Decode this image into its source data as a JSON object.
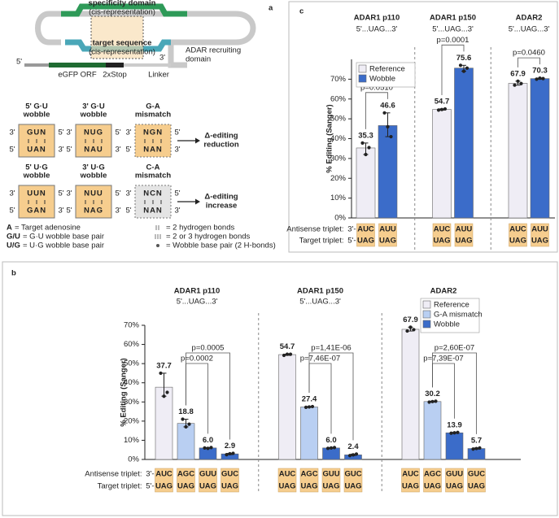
{
  "diagram": {
    "panel_label": "a",
    "construct": {
      "specificity": "specificity domain",
      "specificity_note": "(cis-representation)",
      "target": "target sequence",
      "target_note": "(cis-representation)",
      "three_prime": "3'",
      "five_prime": "5'",
      "recruiting": [
        "ADAR recruiting",
        "domain"
      ],
      "orf": "eGFP ORF",
      "stop": "2xStop",
      "linker": "Linker"
    },
    "pairs": [
      {
        "title": [
          "5' G·U",
          "wobble"
        ],
        "top": "GUN",
        "bottom": "UAN"
      },
      {
        "title": [
          "3' G·U",
          "wobble"
        ],
        "top": "NUG",
        "bottom": "NAU"
      },
      {
        "title": [
          "G-A",
          "mismatch"
        ],
        "top": "NGN",
        "bottom": "NAN"
      },
      {
        "title": [
          "5' U·G",
          "wobble"
        ],
        "top": "UUN",
        "bottom": "GAN"
      },
      {
        "title": [
          "3' U·G",
          "wobble"
        ],
        "top": "NUU",
        "bottom": "NAG"
      },
      {
        "title": [
          "C-A",
          "mismatch"
        ],
        "top": "NCN",
        "bottom": "NAN"
      }
    ],
    "ends": {
      "left_top": "3'",
      "right_top": "5'",
      "left_bottom": "5'",
      "right_bottom": "3'"
    },
    "effects": [
      [
        "Δ-editing",
        "reduction"
      ],
      [
        "Δ-editing",
        "increase"
      ]
    ],
    "legend": [
      {
        "symbol": "A",
        "text": "= Target adenosine"
      },
      {
        "symbol": "G/U",
        "text": "= G·U wobble base pair"
      },
      {
        "symbol": "U/G",
        "text": "= U·G wobble base pair"
      },
      {
        "text": "= 2 hydrogen bonds"
      },
      {
        "text": "= 2 or 3 hydrogen bonds"
      },
      {
        "text": "= Wobble base pair (2 H-bonds)"
      }
    ]
  },
  "chart_data": [
    {
      "type": "grouped-bar",
      "panel_label": "c",
      "ylabel": "% Editing (Sanger)",
      "categories": [
        "ADAR1 p110",
        "ADAR1 p150",
        "ADAR2"
      ],
      "subtitles": [
        "5'...UAG...3'",
        "5'...UAG...3'",
        "5'...UAG...3'"
      ],
      "ylim": [
        0,
        80
      ],
      "yticks": [
        {
          "value": 0,
          "label": "0%"
        },
        {
          "value": 10,
          "label": "10%"
        },
        {
          "value": 20,
          "label": "20%"
        },
        {
          "value": 30,
          "label": "30%"
        },
        {
          "value": 40,
          "label": "40%"
        },
        {
          "value": 50,
          "label": "50%"
        },
        {
          "value": 60,
          "label": "60%"
        },
        {
          "value": 70,
          "label": "70%"
        }
      ],
      "legend": "upper left",
      "series": [
        {
          "name": "Reference",
          "color": "#efedf5",
          "values": [
            35.3,
            54.7,
            67.9
          ],
          "points": [
            [
              37.8,
              32,
              35.5
            ],
            [
              54.4,
              54.7,
              55
            ],
            [
              67,
              69,
              67.8
            ]
          ]
        },
        {
          "name": "Wobble",
          "color": "#3b6cc9",
          "values": [
            46.6,
            75.6,
            70.3
          ],
          "points": [
            [
              53,
              46,
              41
            ],
            [
              77,
              74,
              75.6
            ],
            [
              70,
              70.5,
              70.3
            ]
          ]
        }
      ],
      "pvalues": [
        [
          "p=0.0510"
        ],
        [
          "p=0.0001"
        ],
        [
          "p=0.0460"
        ]
      ],
      "triplet_labels": {
        "antisense": "Antisense triplet:",
        "target": "Target triplet:",
        "antisense_end": "3'-",
        "target_end": "5'-"
      },
      "antisense": [
        [
          "AUC",
          "AUU"
        ],
        [
          "AUC",
          "AUU"
        ],
        [
          "AUC",
          "AUU"
        ]
      ],
      "target": [
        [
          "UAG",
          "UAG"
        ],
        [
          "UAG",
          "UAG"
        ],
        [
          "UAG",
          "UAG"
        ]
      ]
    },
    {
      "type": "grouped-bar",
      "panel_label": "b",
      "ylabel": "% Editing (Sanger)",
      "categories": [
        "ADAR1 p110",
        "ADAR1 p150",
        "ADAR2"
      ],
      "subtitles": [
        "5'...UAG...3'",
        "5'...UAG...3'",
        "5'...UAG...3'"
      ],
      "ylim": [
        0,
        70
      ],
      "yticks": [
        {
          "value": 0,
          "label": "0%"
        },
        {
          "value": 10,
          "label": "10%"
        },
        {
          "value": 20,
          "label": "20%"
        },
        {
          "value": 30,
          "label": "30%"
        },
        {
          "value": 40,
          "label": "40%"
        },
        {
          "value": 50,
          "label": "50%"
        },
        {
          "value": 60,
          "label": "60%"
        },
        {
          "value": 70,
          "label": "70%"
        }
      ],
      "legend": "upper right",
      "series": [
        {
          "name": "Reference",
          "color": "#efedf5",
          "values": [
            37.7,
            54.7,
            67.9
          ],
          "value_labels": [
            "37.7",
            "54.7",
            "67.9"
          ],
          "points": [
            [
              45,
              33,
              35
            ],
            [
              54.3,
              54.9,
              54.9
            ],
            [
              67,
              69,
              67.7
            ]
          ]
        },
        {
          "name": "G-A mismatch",
          "color": "#b9cff2",
          "values": [
            18.8,
            27.4,
            30.2
          ],
          "value_labels": [
            "18.8",
            "27.4",
            "30.2"
          ],
          "points": [
            [
              21,
              17,
              18.4
            ],
            [
              27.2,
              27.4,
              27.6
            ],
            [
              29.9,
              30.2,
              30.4
            ]
          ]
        },
        {
          "name": "Wobble",
          "color": "#3b6cc9",
          "values": [
            6.0,
            6.0,
            13.9
          ],
          "value_labels": [
            "6.0",
            "6.0",
            "13.9"
          ],
          "points": [
            [
              6,
              5.8,
              6.2
            ],
            [
              5.8,
              6,
              6.2
            ],
            [
              13.7,
              13.9,
              14.1
            ]
          ]
        },
        {
          "color": "#3b6cc9",
          "values": [
            2.9,
            2.4,
            5.7
          ],
          "value_labels": [
            "2.9",
            "2.4",
            "5.7"
          ],
          "points": [
            [
              2.5,
              3,
              3.2
            ],
            [
              2,
              2.4,
              2.8
            ],
            [
              5.4,
              5.7,
              6
            ]
          ]
        }
      ],
      "pvalues": [
        [
          "p=0.0005",
          "p=0.0002"
        ],
        [
          "p=1,41E-06",
          "p=7,46E-07"
        ],
        [
          "p=2,60E-07",
          "p=7,39E-07"
        ]
      ],
      "triplet_labels": {
        "antisense": "Antisense triplet:",
        "target": "Target triplet:",
        "antisense_end": "3'-",
        "target_end": "5'-"
      },
      "antisense": [
        [
          "AUC",
          "AGC",
          "GUU",
          "GUC"
        ],
        [
          "AUC",
          "AGC",
          "GUU",
          "GUC"
        ],
        [
          "AUC",
          "AGC",
          "GUU",
          "GUC"
        ]
      ],
      "target": [
        [
          "UAG",
          "UAG",
          "UAG",
          "UAG"
        ],
        [
          "UAG",
          "UAG",
          "UAG",
          "UAG"
        ],
        [
          "UAG",
          "UAG",
          "UAG",
          "UAG"
        ]
      ]
    }
  ]
}
